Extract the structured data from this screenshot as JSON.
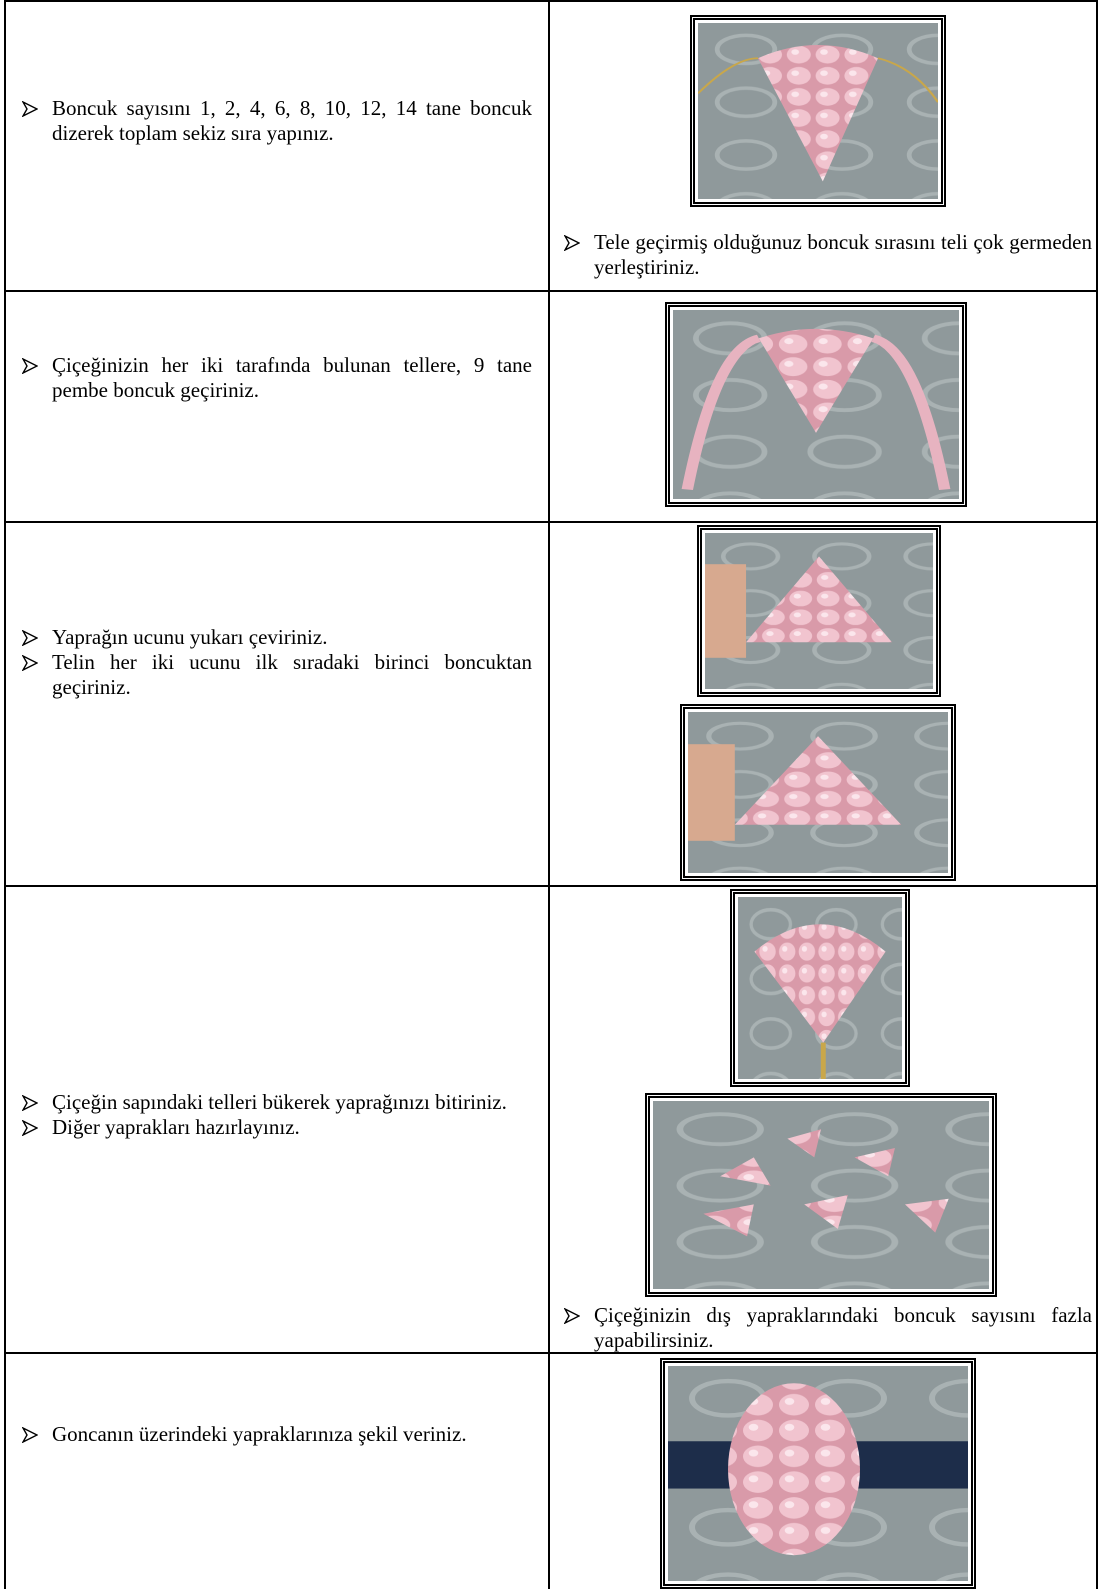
{
  "rows": [
    {
      "left": [
        "Boncuk sayısını 1, 2, 4, 6, 8, 10, 12, 14 tane boncuk dizerek toplam sekiz sıra yapınız."
      ],
      "right": [
        "Tele geçirmiş olduğunuz boncuk sırasını teli çok germeden yerleştiriniz."
      ]
    },
    {
      "left": [
        "Çiçeğinizin her iki tarafında bulunan tellere, 9 tane pembe boncuk geçiriniz."
      ]
    },
    {
      "left": [
        "Yaprağın ucunu yukarı çeviriniz.",
        "Telin her iki ucunu ilk sıradaki birinci boncuktan geçiriniz."
      ]
    },
    {
      "left": [
        "Çiçeğin sapındaki telleri bükerek yaprağınızı bitiriniz.",
        "Diğer yaprakları hazırlayınız."
      ],
      "right": [
        "Çiçeğinizin dış yapraklarındaki boncuk sayısını fazla yapabilirsiniz."
      ]
    },
    {
      "left": [
        "Goncanın üzerindeki yapraklarınıza şekil veriniz."
      ]
    }
  ]
}
